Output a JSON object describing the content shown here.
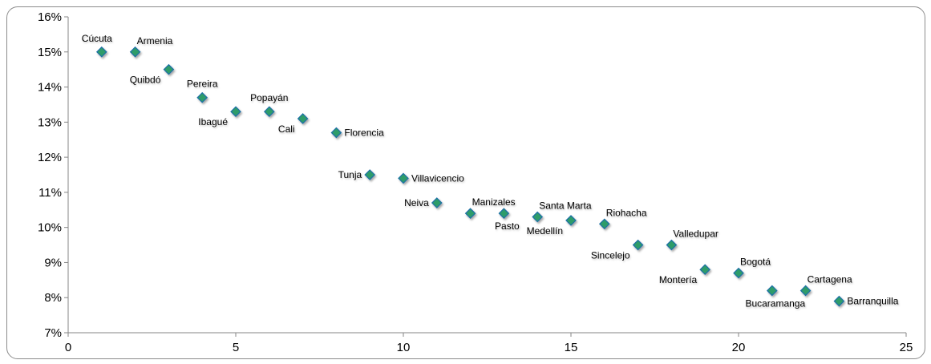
{
  "chart_data": {
    "type": "scatter",
    "title": "",
    "xlabel": "",
    "ylabel": "",
    "xlim": [
      0,
      25
    ],
    "ylim": [
      7,
      16
    ],
    "x_ticks": [
      "0",
      "5",
      "10",
      "15",
      "20",
      "25"
    ],
    "y_ticks": [
      "7%",
      "8%",
      "9%",
      "10%",
      "11%",
      "12%",
      "13%",
      "14%",
      "15%",
      "16%"
    ],
    "grid": false,
    "legend": "none",
    "marker": "diamond",
    "marker_color": "#2e9c6a",
    "marker_edge_color": "#1f6fa6",
    "points": [
      {
        "label": "Cúcuta",
        "x": 1,
        "y": 15.0,
        "label_pos": "above-left"
      },
      {
        "label": "Armenia",
        "x": 2,
        "y": 15.0,
        "label_pos": "above-right"
      },
      {
        "label": "Quibdó",
        "x": 3,
        "y": 14.5,
        "label_pos": "below-left"
      },
      {
        "label": "Pereira",
        "x": 4,
        "y": 13.7,
        "label_pos": "above"
      },
      {
        "label": "Ibagué",
        "x": 5,
        "y": 13.3,
        "label_pos": "below-left"
      },
      {
        "label": "Popayán",
        "x": 6,
        "y": 13.3,
        "label_pos": "above"
      },
      {
        "label": "Cali",
        "x": 7,
        "y": 13.1,
        "label_pos": "below-left"
      },
      {
        "label": "Florencia",
        "x": 8,
        "y": 12.7,
        "label_pos": "right"
      },
      {
        "label": "Tunja",
        "x": 9,
        "y": 11.5,
        "label_pos": "left"
      },
      {
        "label": "Villavicencio",
        "x": 10,
        "y": 11.4,
        "label_pos": "right"
      },
      {
        "label": "Neiva",
        "x": 11,
        "y": 10.7,
        "label_pos": "left"
      },
      {
        "label": "Manizales",
        "x": 12,
        "y": 10.4,
        "label_pos": "above-right"
      },
      {
        "label": "Pasto",
        "x": 13,
        "y": 10.4,
        "label_pos": "below"
      },
      {
        "label": "Santa Marta",
        "x": 14,
        "y": 10.3,
        "label_pos": "above-right"
      },
      {
        "label": "Medellín",
        "x": 15,
        "y": 10.2,
        "label_pos": "below-left"
      },
      {
        "label": "Riohacha",
        "x": 16,
        "y": 10.1,
        "label_pos": "above-right"
      },
      {
        "label": "Sincelejo",
        "x": 17,
        "y": 9.5,
        "label_pos": "below-left"
      },
      {
        "label": "Valledupar",
        "x": 18,
        "y": 9.5,
        "label_pos": "above-right"
      },
      {
        "label": "Montería",
        "x": 19,
        "y": 8.8,
        "label_pos": "below-left"
      },
      {
        "label": "Bogotá",
        "x": 20,
        "y": 8.7,
        "label_pos": "above-right"
      },
      {
        "label": "Bucaramanga",
        "x": 21,
        "y": 8.2,
        "label_pos": "below"
      },
      {
        "label": "Cartagena",
        "x": 22,
        "y": 8.2,
        "label_pos": "above-right"
      },
      {
        "label": "Barranquilla",
        "x": 23,
        "y": 7.9,
        "label_pos": "right"
      }
    ]
  }
}
